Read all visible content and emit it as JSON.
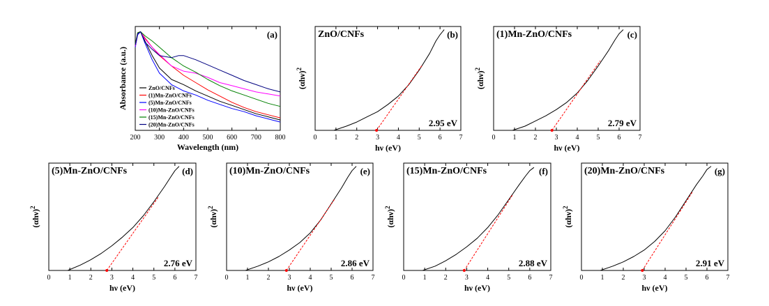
{
  "figure": {
    "absorbance_panel": {
      "letter": "(a)",
      "xlabel": "Wavelength (nm)",
      "ylabel": "Absorbance (a.u.)"
    },
    "tauc": {
      "xlabel": "hν (eV)",
      "ylabel_base": "(αhν)",
      "ylabel_exp": "2"
    }
  },
  "chart_data": [
    {
      "type": "line",
      "id": "a",
      "letter": "(a)",
      "xlabel": "Wavelength (nm)",
      "ylabel": "Absorbance (a.u.)",
      "xlim": [
        200,
        800
      ],
      "ylim": [
        0,
        1
      ],
      "xticks": [
        200,
        300,
        400,
        500,
        600,
        700,
        800
      ],
      "yticks_shown": false,
      "legend_position": "bottom-left",
      "series": [
        {
          "name": "ZnO/CNFs",
          "color": "#000000",
          "x": [
            200,
            210,
            222,
            240,
            270,
            300,
            350,
            400,
            450,
            500,
            550,
            600,
            650,
            700,
            750,
            800
          ],
          "values": [
            0.8,
            0.93,
            0.95,
            0.86,
            0.72,
            0.6,
            0.49,
            0.44,
            0.38,
            0.33,
            0.28,
            0.24,
            0.2,
            0.16,
            0.13,
            0.1
          ]
        },
        {
          "name": "(1)Mn-ZnO/CNFs",
          "color": "#ff0000",
          "x": [
            200,
            210,
            222,
            240,
            270,
            300,
            350,
            400,
            450,
            500,
            550,
            600,
            650,
            700,
            750,
            800
          ],
          "values": [
            0.82,
            0.94,
            0.95,
            0.89,
            0.8,
            0.72,
            0.62,
            0.53,
            0.46,
            0.39,
            0.33,
            0.27,
            0.22,
            0.18,
            0.15,
            0.12
          ]
        },
        {
          "name": "(5)Mn-ZnO/CNFs",
          "color": "#0000ff",
          "x": [
            200,
            210,
            222,
            240,
            270,
            300,
            350,
            400,
            450,
            500,
            550,
            600,
            650,
            700,
            750,
            800
          ],
          "values": [
            0.8,
            0.92,
            0.95,
            0.84,
            0.68,
            0.55,
            0.44,
            0.38,
            0.34,
            0.29,
            0.25,
            0.21,
            0.18,
            0.14,
            0.11,
            0.08
          ]
        },
        {
          "name": "(10)Mn-ZnO/CNFs",
          "color": "#ff00ff",
          "x": [
            200,
            210,
            222,
            240,
            270,
            300,
            350,
            400,
            450,
            500,
            550,
            600,
            650,
            700,
            750,
            800
          ],
          "values": [
            0.81,
            0.93,
            0.95,
            0.88,
            0.8,
            0.73,
            0.62,
            0.57,
            0.55,
            0.51,
            0.46,
            0.43,
            0.4,
            0.37,
            0.35,
            0.33
          ]
        },
        {
          "name": "(15)Mn-ZnO/CNFs",
          "color": "#008000",
          "x": [
            200,
            210,
            222,
            240,
            270,
            300,
            350,
            400,
            450,
            500,
            550,
            600,
            650,
            700,
            750,
            800
          ],
          "values": [
            0.83,
            0.94,
            0.95,
            0.91,
            0.86,
            0.8,
            0.7,
            0.62,
            0.56,
            0.49,
            0.43,
            0.38,
            0.34,
            0.3,
            0.26,
            0.23
          ]
        },
        {
          "name": "(20)Mn-ZnO/CNFs",
          "color": "#000080",
          "x": [
            200,
            210,
            222,
            240,
            270,
            300,
            350,
            380,
            400,
            450,
            500,
            550,
            600,
            650,
            700,
            750,
            800
          ],
          "values": [
            0.82,
            0.93,
            0.95,
            0.85,
            0.78,
            0.72,
            0.7,
            0.72,
            0.72,
            0.68,
            0.63,
            0.58,
            0.53,
            0.48,
            0.44,
            0.4,
            0.37
          ]
        }
      ]
    },
    {
      "type": "line",
      "id": "b",
      "letter": "(b)",
      "title": "ZnO/CNFs",
      "gap_label": "2.95 eV",
      "band_gap_ev": 2.95,
      "xlabel": "hν (eV)",
      "ylabel": "(αhν)2",
      "xlim": [
        0,
        7
      ],
      "ylim": [
        0,
        1
      ],
      "xticks": [
        0,
        1,
        2,
        3,
        4,
        5,
        6,
        7
      ],
      "series": [
        {
          "name": "data",
          "color": "#000000",
          "x": [
            0.9,
            1.5,
            2.0,
            2.5,
            3.0,
            3.5,
            4.0,
            4.5,
            5.0,
            5.5,
            5.8,
            6.0,
            6.2
          ],
          "values": [
            0.0,
            0.04,
            0.08,
            0.13,
            0.18,
            0.25,
            0.33,
            0.44,
            0.58,
            0.74,
            0.86,
            0.92,
            0.97
          ]
        }
      ],
      "fit_line": {
        "x": [
          2.95,
          5.15
        ],
        "values": [
          0.0,
          0.63
        ]
      }
    },
    {
      "type": "line",
      "id": "c",
      "letter": "(c)",
      "title": "(1)Mn-ZnO/CNFs",
      "gap_label": "2.79 eV",
      "band_gap_ev": 2.79,
      "xlabel": "hν (eV)",
      "ylabel": "(αhν)2",
      "xlim": [
        0,
        7
      ],
      "ylim": [
        0,
        1
      ],
      "xticks": [
        0,
        1,
        2,
        3,
        4,
        5,
        6,
        7
      ],
      "series": [
        {
          "name": "data",
          "color": "#000000",
          "x": [
            0.9,
            1.5,
            2.0,
            2.5,
            3.0,
            3.5,
            4.0,
            4.5,
            5.0,
            5.5,
            5.8,
            6.0,
            6.2
          ],
          "values": [
            0.0,
            0.04,
            0.09,
            0.14,
            0.2,
            0.27,
            0.36,
            0.48,
            0.62,
            0.77,
            0.87,
            0.93,
            0.97
          ]
        }
      ],
      "fit_line": {
        "x": [
          2.79,
          5.1
        ],
        "values": [
          0.0,
          0.67
        ]
      }
    },
    {
      "type": "line",
      "id": "d",
      "letter": "(d)",
      "title": "(5)Mn-ZnO/CNFs",
      "gap_label": "2.76 eV",
      "band_gap_ev": 2.76,
      "xlabel": "hν (eV)",
      "ylabel": "(αhν)2",
      "xlim": [
        0,
        7
      ],
      "ylim": [
        0,
        1
      ],
      "xticks": [
        0,
        1,
        2,
        3,
        4,
        5,
        6,
        7
      ],
      "series": [
        {
          "name": "data",
          "color": "#000000",
          "x": [
            0.9,
            1.5,
            2.0,
            2.5,
            3.0,
            3.5,
            4.0,
            4.5,
            5.0,
            5.5,
            5.8,
            6.0,
            6.2
          ],
          "values": [
            0.0,
            0.05,
            0.1,
            0.16,
            0.23,
            0.31,
            0.4,
            0.51,
            0.64,
            0.78,
            0.87,
            0.93,
            0.97
          ]
        }
      ],
      "fit_line": {
        "x": [
          2.76,
          5.2
        ],
        "values": [
          0.0,
          0.68
        ]
      }
    },
    {
      "type": "line",
      "id": "e",
      "letter": "(e)",
      "title": "(10)Mn-ZnO/CNFs",
      "gap_label": "2.86 eV",
      "band_gap_ev": 2.86,
      "xlabel": "hν (eV)",
      "ylabel": "(αhν)2",
      "xlim": [
        0,
        7
      ],
      "ylim": [
        0,
        1
      ],
      "xticks": [
        0,
        1,
        2,
        3,
        4,
        5,
        6,
        7
      ],
      "series": [
        {
          "name": "data",
          "color": "#000000",
          "x": [
            0.9,
            1.5,
            2.0,
            2.5,
            3.0,
            3.5,
            4.0,
            4.5,
            5.0,
            5.5,
            5.8,
            6.0,
            6.2
          ],
          "values": [
            0.0,
            0.04,
            0.08,
            0.13,
            0.19,
            0.26,
            0.35,
            0.47,
            0.62,
            0.77,
            0.87,
            0.93,
            0.97
          ]
        }
      ],
      "fit_line": {
        "x": [
          2.86,
          5.15
        ],
        "values": [
          0.0,
          0.66
        ]
      }
    },
    {
      "type": "line",
      "id": "f",
      "letter": "(f)",
      "title": "(15)Mn-ZnO/CNFs",
      "gap_label": "2.88 eV",
      "band_gap_ev": 2.88,
      "xlabel": "hν (eV)",
      "ylabel": "(αhν)2",
      "xlim": [
        0,
        7
      ],
      "ylim": [
        0,
        1
      ],
      "xticks": [
        0,
        1,
        2,
        3,
        4,
        5,
        6,
        7
      ],
      "series": [
        {
          "name": "data",
          "color": "#000000",
          "x": [
            0.9,
            1.5,
            2.0,
            2.5,
            3.0,
            3.5,
            4.0,
            4.5,
            5.0,
            5.5,
            5.8,
            6.0,
            6.2
          ],
          "values": [
            0.0,
            0.04,
            0.09,
            0.15,
            0.22,
            0.3,
            0.4,
            0.52,
            0.66,
            0.8,
            0.88,
            0.93,
            0.96
          ]
        }
      ],
      "fit_line": {
        "x": [
          2.88,
          5.2
        ],
        "values": [
          0.0,
          0.71
        ]
      }
    },
    {
      "type": "line",
      "id": "g",
      "letter": "(g)",
      "title": "(20)Mn-ZnO/CNFs",
      "gap_label": "2.91 eV",
      "band_gap_ev": 2.91,
      "xlabel": "hν (eV)",
      "ylabel": "(αhν)2",
      "xlim": [
        0,
        7
      ],
      "ylim": [
        0,
        1
      ],
      "xticks": [
        0,
        1,
        2,
        3,
        4,
        5,
        6,
        7
      ],
      "series": [
        {
          "name": "data",
          "color": "#000000",
          "x": [
            0.9,
            1.5,
            2.0,
            2.5,
            3.0,
            3.5,
            4.0,
            4.5,
            5.0,
            5.5,
            5.8,
            6.0,
            6.2
          ],
          "values": [
            0.0,
            0.04,
            0.08,
            0.13,
            0.19,
            0.27,
            0.37,
            0.5,
            0.65,
            0.8,
            0.88,
            0.94,
            0.97
          ]
        }
      ],
      "fit_line": {
        "x": [
          2.91,
          5.3
        ],
        "values": [
          0.0,
          0.73
        ]
      }
    }
  ]
}
